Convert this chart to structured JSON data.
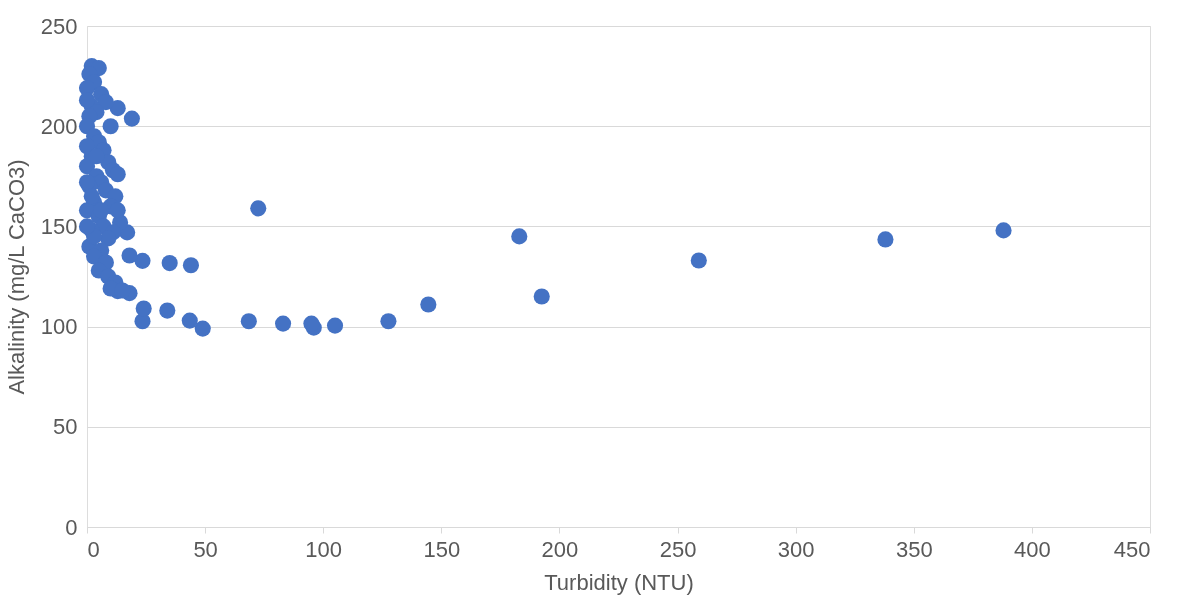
{
  "chart_data": {
    "type": "scatter",
    "xlabel": "Turbidity (NTU)",
    "ylabel": "Alkalinity (mg/L CaCO3)",
    "xlim": [
      0,
      450
    ],
    "xticks": [
      0,
      50,
      100,
      150,
      200,
      250,
      300,
      350,
      400,
      450
    ],
    "ylim": [
      0,
      250
    ],
    "yticks": [
      0,
      50,
      100,
      150,
      200,
      250
    ],
    "grid": "y",
    "marker": "circle",
    "legend": false,
    "series": [
      {
        "color": "#4472c4",
        "x": [
          388,
          338,
          259,
          192.5,
          183,
          144.5,
          127.6,
          105,
          96,
          95,
          83,
          68.5,
          49,
          43.5,
          34,
          23.5,
          24,
          44,
          35,
          23.5,
          18,
          17,
          19,
          13,
          72.5,
          18,
          13,
          2,
          5,
          1,
          3,
          0,
          6,
          8,
          2,
          4,
          10,
          1,
          0,
          3,
          5,
          7,
          2,
          9,
          11,
          13,
          0,
          4,
          6,
          1,
          8,
          12,
          3,
          10,
          0,
          5,
          14,
          7,
          2,
          11,
          9,
          1,
          6,
          3,
          8,
          5,
          9,
          12,
          10,
          15,
          3,
          0,
          0,
          0,
          2,
          6,
          4,
          0,
          13
        ],
        "values": [
          148,
          143.5,
          133,
          115,
          145,
          111,
          102.7,
          100.5,
          99.5,
          101.5,
          101.5,
          102.7,
          99,
          103,
          108,
          102.7,
          109,
          130.6,
          131.7,
          132.8,
          135.5,
          147,
          203.8,
          209,
          159,
          116.7,
          117.7,
          230,
          229,
          226,
          222,
          219,
          216,
          212,
          210,
          207,
          200,
          205,
          200,
          195,
          192,
          188,
          185,
          182,
          178,
          176,
          180,
          175,
          172,
          170,
          168,
          165,
          162,
          160,
          158,
          155,
          152,
          150,
          148,
          147,
          144,
          140,
          138,
          135,
          132,
          128,
          125,
          122,
          119,
          118,
          145,
          172,
          190,
          150,
          165,
          158,
          185,
          213,
          158
        ]
      }
    ]
  }
}
